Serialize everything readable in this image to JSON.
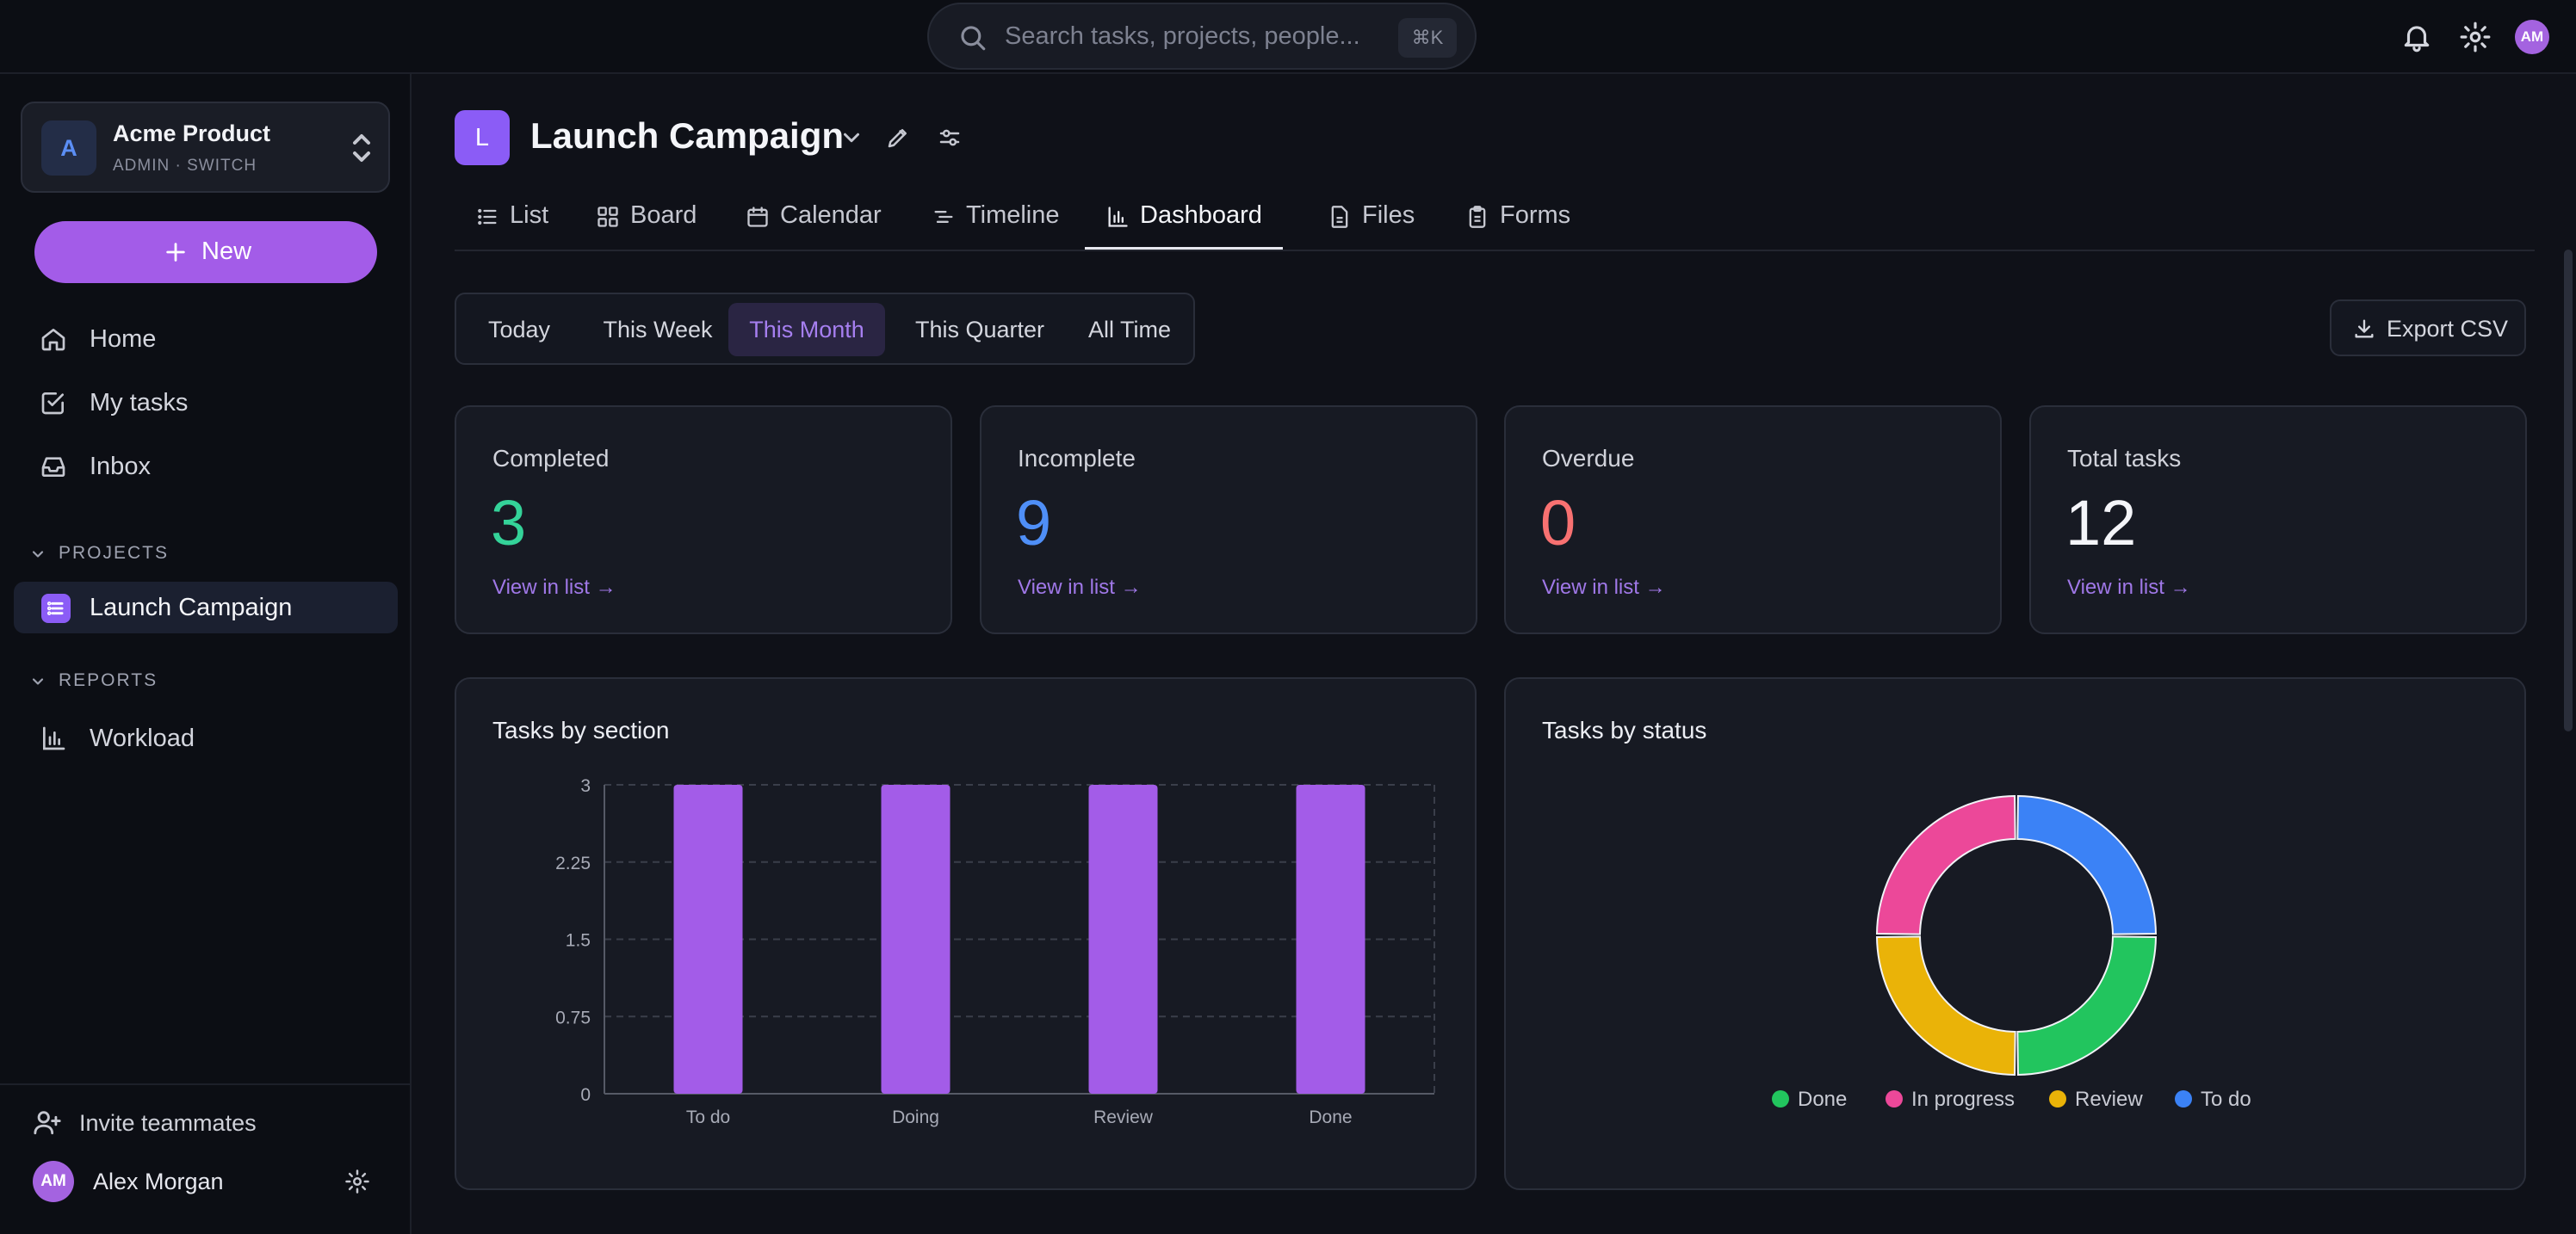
{
  "search": {
    "placeholder": "Search tasks, projects, people...",
    "shortcut": "⌘K"
  },
  "topbar": {
    "avatar_initials": "AM",
    "icons": [
      "bell-icon",
      "gear-icon"
    ]
  },
  "workspace": {
    "logo_letter": "A",
    "name": "Acme Product",
    "subtitle": "ADMIN · SWITCH"
  },
  "new_button": {
    "label": "New"
  },
  "nav": [
    {
      "label": "Home",
      "icon": "home-icon"
    },
    {
      "label": "My tasks",
      "icon": "check-square-icon"
    },
    {
      "label": "Inbox",
      "icon": "inbox-icon"
    }
  ],
  "projects_section": {
    "heading": "PROJECTS",
    "items": [
      {
        "label": "Launch Campaign"
      }
    ]
  },
  "reports_section": {
    "heading": "REPORTS",
    "items": [
      {
        "label": "Workload"
      }
    ]
  },
  "footer": {
    "invite_label": "Invite teammates",
    "user_initials": "AM",
    "user_name": "Alex Morgan"
  },
  "project": {
    "logo_letter": "L",
    "title": "Launch Campaign"
  },
  "tabs": [
    {
      "label": "List",
      "icon": "list-icon"
    },
    {
      "label": "Board",
      "icon": "board-icon"
    },
    {
      "label": "Calendar",
      "icon": "calendar-icon"
    },
    {
      "label": "Timeline",
      "icon": "timeline-icon"
    },
    {
      "label": "Dashboard",
      "icon": "bar-chart-icon",
      "active": true
    },
    {
      "label": "Files",
      "icon": "file-icon"
    },
    {
      "label": "Forms",
      "icon": "clipboard-icon"
    }
  ],
  "date_range": {
    "options": [
      "Today",
      "This Week",
      "This Month",
      "This Quarter",
      "All Time"
    ],
    "selected": "This Month"
  },
  "export": {
    "label": "Export CSV"
  },
  "kpis": [
    {
      "label": "Completed",
      "value": "3",
      "color": "#34d399",
      "link": "View in list →"
    },
    {
      "label": "Incomplete",
      "value": "9",
      "color": "#4f8ff7",
      "link": "View in list →"
    },
    {
      "label": "Overdue",
      "value": "0",
      "color": "#f87171",
      "link": "View in list →"
    },
    {
      "label": "Total tasks",
      "value": "12",
      "color": "#f4f5f9",
      "link": "View in list →"
    }
  ],
  "chart_data": [
    {
      "type": "bar",
      "title": "Tasks by section",
      "categories": [
        "To do",
        "Doing",
        "Review",
        "Done"
      ],
      "values": [
        3,
        3,
        3,
        3
      ],
      "ylim": [
        0,
        3
      ],
      "yticks": [
        "0",
        "0.75",
        "1.5",
        "2.25",
        "3"
      ],
      "grid": true,
      "color": "#a35ce8"
    },
    {
      "type": "pie",
      "title": "Tasks by status",
      "labels": [
        "To do",
        "Done",
        "Review",
        "In progress"
      ],
      "values": [
        3,
        3,
        3,
        3
      ],
      "colors": [
        "#3b82f6",
        "#22c55e",
        "#eab308",
        "#ec4899"
      ],
      "legend": [
        "Done",
        "In progress",
        "Review",
        "To do"
      ],
      "legend_colors": [
        "#22c55e",
        "#ec4899",
        "#eab308",
        "#3b82f6"
      ],
      "legend_position": "bottom"
    }
  ]
}
